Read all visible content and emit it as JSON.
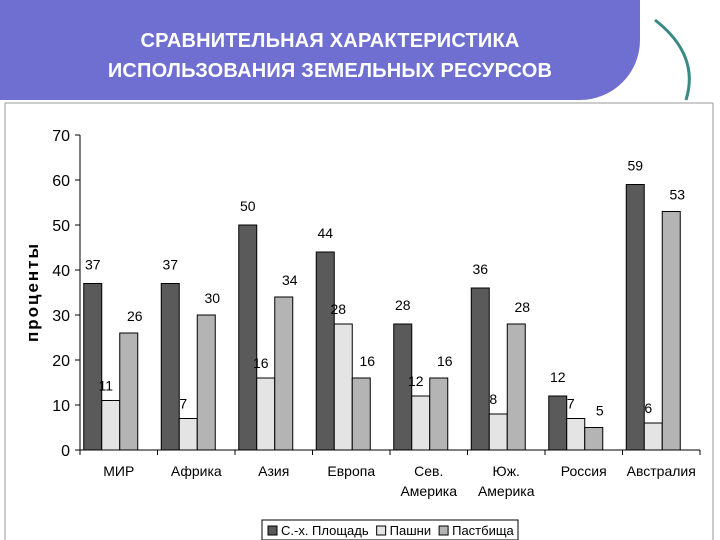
{
  "slide": {
    "title_line1": "СРАВНИТЕЛЬНАЯ ХАРАКТЕРИСТИКА",
    "title_line2": "ИСПОЛЬЗОВАНИЯ ЗЕМЕЛЬНЫХ РЕСУРСОВ",
    "banner_color": "#6f6fd2",
    "swoosh_color": "#3a8a84"
  },
  "chart_data": {
    "type": "bar",
    "title": "",
    "ylabel": "проценты",
    "xlabel": "",
    "ylim": [
      0,
      70
    ],
    "yticks": [
      0,
      10,
      20,
      30,
      40,
      50,
      60,
      70
    ],
    "grid": false,
    "legend": "bottom",
    "categories": [
      [
        "МИР"
      ],
      [
        "Африка"
      ],
      [
        "Азия"
      ],
      [
        "Европа"
      ],
      [
        "Сев.",
        "Америка"
      ],
      [
        "Юж.",
        "Америка"
      ],
      [
        "Россия"
      ],
      [
        "Австралия"
      ]
    ],
    "series": [
      {
        "name": "С.-х. Площадь",
        "color": "#5a5a5a",
        "values": [
          37,
          37,
          50,
          44,
          28,
          36,
          12,
          59
        ]
      },
      {
        "name": "Пашни",
        "color": "#e4e4e4",
        "values": [
          11,
          7,
          16,
          28,
          12,
          8,
          7,
          6
        ]
      },
      {
        "name": "Пастбища",
        "color": "#b4b4b4",
        "values": [
          26,
          30,
          34,
          16,
          16,
          28,
          5,
          53
        ]
      }
    ]
  }
}
